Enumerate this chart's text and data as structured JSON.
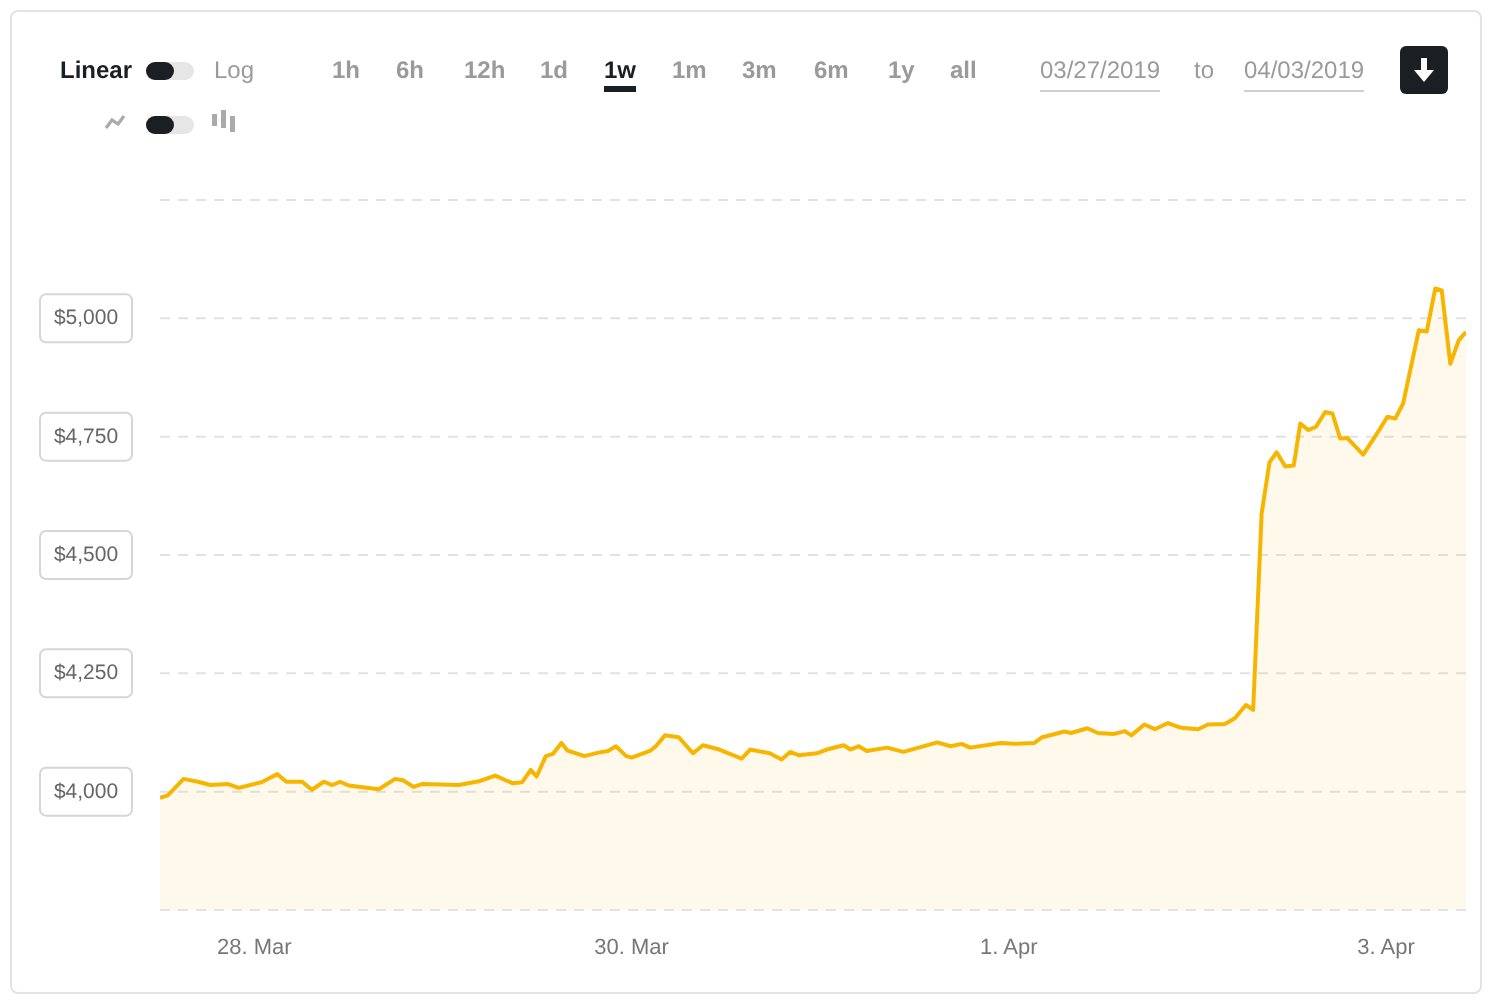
{
  "chart_data": {
    "type": "area",
    "color": "#f7b500",
    "annotations": [
      "Linear",
      "Log",
      "1h",
      "6h",
      "12h",
      "1d",
      "1w",
      "1m",
      "3m",
      "6m",
      "1y",
      "all",
      "03/27/2019",
      "to",
      "04/03/2019"
    ],
    "x": [
      "2019-03-27T12:00",
      "2019-03-27T13:00",
      "2019-03-27T15:00",
      "2019-03-27T16:50",
      "2019-03-27T18:25",
      "2019-03-27T20:40",
      "2019-03-27T22:00",
      "2019-03-28T00:55",
      "2019-03-28T02:55",
      "2019-03-28T04:05",
      "2019-03-28T06:05",
      "2019-03-28T07:20",
      "2019-03-28T08:50",
      "2019-03-28T09:55",
      "2019-03-28T10:55",
      "2019-03-28T12:00",
      "2019-03-28T15:50",
      "2019-03-28T17:55",
      "2019-03-28T18:55",
      "2019-03-28T20:15",
      "2019-03-28T21:20",
      "2019-03-29T02:00",
      "2019-03-29T04:35",
      "2019-03-29T06:40",
      "2019-03-29T08:50",
      "2019-03-29T10:05",
      "2019-03-29T11:10",
      "2019-03-29T11:55",
      "2019-03-29T13:05",
      "2019-03-29T14:00",
      "2019-03-29T15:05",
      "2019-03-29T15:50",
      "2019-03-29T18:00",
      "2019-03-29T19:55",
      "2019-03-29T21:00",
      "2019-03-29T22:00",
      "2019-03-29T23:20",
      "2019-03-30T00:00",
      "2019-03-30T02:20",
      "2019-03-30T03:05",
      "2019-03-30T04:15",
      "2019-03-30T06:00",
      "2019-03-30T07:50",
      "2019-03-30T09:05",
      "2019-03-30T11:10",
      "2019-03-30T14:00",
      "2019-03-30T15:05",
      "2019-03-30T17:35",
      "2019-03-30T19:05",
      "2019-03-30T20:10",
      "2019-03-30T21:15",
      "2019-03-30T23:35",
      "2019-03-31T00:50",
      "2019-03-31T03:00",
      "2019-03-31T03:50",
      "2019-03-31T04:55",
      "2019-03-31T05:55",
      "2019-03-31T08:30",
      "2019-03-31T10:35",
      "2019-03-31T12:45",
      "2019-03-31T14:55",
      "2019-03-31T16:35",
      "2019-03-31T18:00",
      "2019-03-31T19:05",
      "2019-03-31T23:00",
      "2019-04-01T00:40",
      "2019-04-01T03:15",
      "2019-04-01T04:15",
      "2019-04-01T07:05",
      "2019-04-01T07:55",
      "2019-04-01T10:00",
      "2019-04-01T11:20",
      "2019-04-01T13:25",
      "2019-04-01T14:45",
      "2019-04-01T15:35",
      "2019-04-01T17:15",
      "2019-04-01T18:35",
      "2019-04-01T20:15",
      "2019-04-01T21:55",
      "2019-04-02T00:05",
      "2019-04-02T01:20",
      "2019-04-02T03:30",
      "2019-04-02T04:45",
      "2019-04-02T06:10",
      "2019-04-02T07:05",
      "2019-04-02T08:10",
      "2019-04-02T09:10",
      "2019-04-02T10:05",
      "2019-04-02T11:10",
      "2019-04-02T12:15",
      "2019-04-02T13:05",
      "2019-04-02T14:05",
      "2019-04-02T15:05",
      "2019-04-02T16:15",
      "2019-04-02T17:10",
      "2019-04-02T18:10",
      "2019-04-02T19:05",
      "2019-04-02T21:05",
      "2019-04-02T22:40",
      "2019-04-03T00:10",
      "2019-04-03T01:10",
      "2019-04-03T02:10",
      "2019-04-03T04:10",
      "2019-04-03T05:10",
      "2019-04-03T06:15",
      "2019-04-03T07:05",
      "2019-04-03T08:10",
      "2019-04-03T09:15",
      "2019-04-03T10:10"
    ],
    "values": [
      3987,
      3992,
      4027,
      4021,
      4014,
      4016,
      4008,
      4020,
      4037,
      4021,
      4021,
      4004,
      4021,
      4014,
      4021,
      4013,
      4005,
      4027,
      4024,
      4010,
      4016,
      4014,
      4022,
      4034,
      4018,
      4020,
      4046,
      4032,
      4075,
      4080,
      4103,
      4087,
      4075,
      4083,
      4086,
      4096,
      4075,
      4072,
      4086,
      4096,
      4119,
      4115,
      4081,
      4098,
      4089,
      4070,
      4089,
      4081,
      4068,
      4084,
      4077,
      4081,
      4089,
      4098,
      4089,
      4096,
      4086,
      4093,
      4084,
      4094,
      4104,
      4096,
      4101,
      4093,
      4103,
      4101,
      4103,
      4115,
      4127,
      4124,
      4134,
      4124,
      4122,
      4128,
      4119,
      4142,
      4132,
      4145,
      4135,
      4132,
      4142,
      4143,
      4155,
      4183,
      4173,
      4588,
      4696,
      4717,
      4687,
      4689,
      4778,
      4764,
      4771,
      4802,
      4799,
      4746,
      4747,
      4712,
      4752,
      4792,
      4788,
      4820,
      4975,
      4972,
      5063,
      5059,
      4904,
      4954,
      4971
    ],
    "xlim": [
      "2019-03-27T12:00",
      "2019-04-03T10:10"
    ],
    "xticks": [
      {
        "value": "2019-03-28",
        "label": "28. Mar"
      },
      {
        "value": "2019-03-30",
        "label": "30. Mar"
      },
      {
        "value": "2019-04-01",
        "label": "1. Apr"
      },
      {
        "value": "2019-04-03",
        "label": "3. Apr"
      }
    ],
    "ylim": [
      3750,
      5250
    ],
    "yticks": [
      {
        "value": 3750,
        "label": null
      },
      {
        "value": 4000,
        "label": "$4,000"
      },
      {
        "value": 4250,
        "label": "$4,250"
      },
      {
        "value": 4500,
        "label": "$4,500"
      },
      {
        "value": 4750,
        "label": "$4,750"
      },
      {
        "value": 5000,
        "label": "$5,000"
      },
      {
        "value": 5250,
        "label": null
      }
    ],
    "grid": "y",
    "legend": false
  }
}
